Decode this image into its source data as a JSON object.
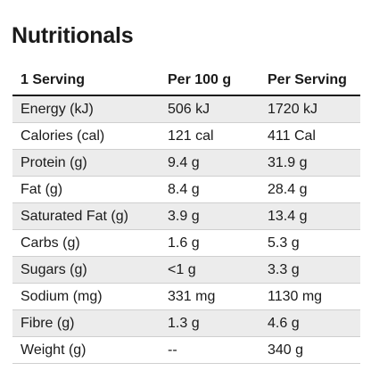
{
  "title": "Nutritionals",
  "columns": [
    "1 Serving",
    "Per 100 g",
    "Per Serving"
  ],
  "rows": [
    [
      "Energy (kJ)",
      "506 kJ",
      "1720 kJ"
    ],
    [
      "Calories (cal)",
      "121 cal",
      "411 Cal"
    ],
    [
      "Protein (g)",
      "9.4 g",
      "31.9 g"
    ],
    [
      "Fat (g)",
      "8.4 g",
      "28.4 g"
    ],
    [
      "Saturated Fat (g)",
      "3.9 g",
      "13.4 g"
    ],
    [
      "Carbs (g)",
      "1.6 g",
      "5.3 g"
    ],
    [
      "Sugars (g)",
      "<1 g",
      "3.3 g"
    ],
    [
      "Sodium (mg)",
      "331 mg",
      "1130 mg"
    ],
    [
      "Fibre (g)",
      "1.3 g",
      "4.6 g"
    ],
    [
      "Weight (g)",
      "--",
      "340 g"
    ]
  ],
  "colors": {
    "shaded_row": "#ececec",
    "text": "#1a1a1a",
    "divider": "#cfcfcf"
  }
}
